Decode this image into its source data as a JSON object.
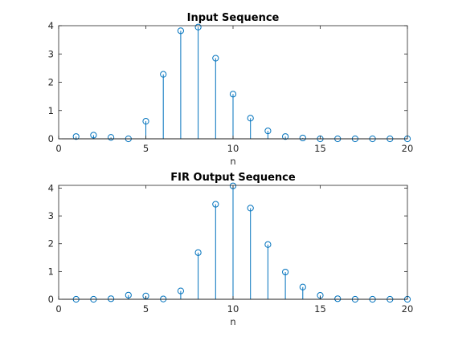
{
  "chart_data": [
    {
      "type": "stem",
      "title": "Input Sequence",
      "xlabel": "n",
      "ylabel": "",
      "xlim": [
        0,
        20
      ],
      "ylim": [
        0,
        4
      ],
      "xticks": [
        0,
        5,
        10,
        15,
        20
      ],
      "yticks": [
        0,
        1,
        2,
        3,
        4
      ],
      "grid": false,
      "color": "#0072BD",
      "x": [
        1,
        2,
        3,
        4,
        5,
        6,
        7,
        8,
        9,
        10,
        11,
        12,
        13,
        14,
        15,
        16,
        17,
        18,
        19,
        20
      ],
      "values": [
        0.08,
        0.13,
        0.05,
        0.0,
        0.62,
        2.28,
        3.82,
        3.95,
        2.85,
        1.58,
        0.73,
        0.28,
        0.08,
        0.03,
        0.0,
        0.0,
        0.0,
        0.0,
        0.0,
        0.0
      ]
    },
    {
      "type": "stem",
      "title": "FIR Output Sequence",
      "xlabel": "n",
      "ylabel": "",
      "xlim": [
        0,
        20
      ],
      "ylim": [
        0,
        4.1
      ],
      "xticks": [
        0,
        5,
        10,
        15,
        20
      ],
      "yticks": [
        0,
        1,
        2,
        3,
        4
      ],
      "grid": false,
      "color": "#0072BD",
      "x": [
        1,
        2,
        3,
        4,
        5,
        6,
        7,
        8,
        9,
        10,
        11,
        12,
        13,
        14,
        15,
        16,
        17,
        18,
        19,
        20
      ],
      "values": [
        0.0,
        0.0,
        0.02,
        0.15,
        0.12,
        0.01,
        0.3,
        1.68,
        3.42,
        4.08,
        3.28,
        1.97,
        0.98,
        0.44,
        0.14,
        0.02,
        0.0,
        0.0,
        0.0,
        0.0
      ]
    }
  ]
}
